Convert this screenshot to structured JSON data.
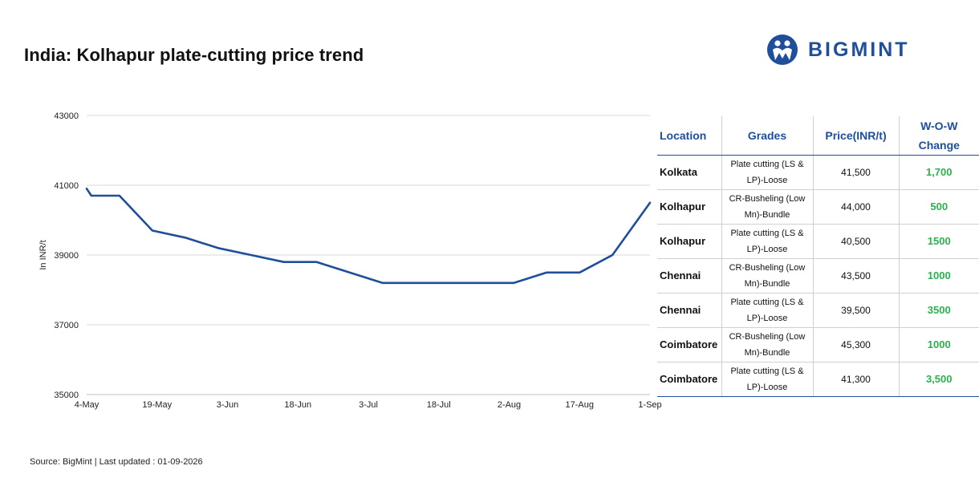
{
  "header": {
    "title": "India: Kolhapur plate-cutting price trend",
    "brand": "BIGMINT",
    "brand_color": "#1f4e9b"
  },
  "chart_data": {
    "type": "line",
    "title": "India: Kolhapur plate-cutting price trend",
    "ylabel": "In INR/t",
    "xlabel": "",
    "ylim": [
      35000,
      43000
    ],
    "yticks": [
      "35000",
      "37000",
      "39000",
      "41000",
      "43000"
    ],
    "xticks": [
      "4-May",
      "19-May",
      "3-Jun",
      "18-Jun",
      "3-Jul",
      "18-Jul",
      "2-Aug",
      "17-Aug",
      "1-Sep"
    ],
    "grid": true,
    "line_color": "#1f4e9b",
    "series": [
      {
        "x": [
          "4-May",
          "5-May",
          "11-May",
          "18-May",
          "25-May",
          "1-Jun",
          "8-Jun",
          "15-Jun",
          "22-Jun",
          "29-Jun",
          "6-Jul",
          "13-Jul",
          "20-Jul",
          "27-Jul",
          "3-Aug",
          "10-Aug",
          "17-Aug",
          "24-Aug",
          "1-Sep"
        ],
        "values": [
          40900,
          40700,
          40700,
          39700,
          39500,
          39200,
          39000,
          38800,
          38800,
          38500,
          38200,
          38200,
          38200,
          38200,
          38200,
          38500,
          38500,
          39000,
          40500
        ]
      }
    ]
  },
  "table": {
    "headers": [
      "Location",
      "Grades",
      "Price(INR/t)",
      "W-O-W Change"
    ],
    "rows": [
      {
        "location": "Kolkata",
        "grade": "Plate cutting (LS & LP)-Loose",
        "price": "41,500",
        "wow": "1,700"
      },
      {
        "location": "Kolhapur",
        "grade": "CR-Busheling (Low Mn)-Bundle",
        "price": "44,000",
        "wow": "500"
      },
      {
        "location": "Kolhapur",
        "grade": "Plate cutting (LS & LP)-Loose",
        "price": "40,500",
        "wow": "1500"
      },
      {
        "location": "Chennai",
        "grade": "CR-Busheling (Low Mn)-Bundle",
        "price": "43,500",
        "wow": "1000"
      },
      {
        "location": "Chennai",
        "grade": "Plate cutting (LS & LP)-Loose",
        "price": "39,500",
        "wow": "3500"
      },
      {
        "location": "Coimbatore",
        "grade": "CR-Busheling (Low Mn)-Bundle",
        "price": "45,300",
        "wow": "1000"
      },
      {
        "location": "Coimbatore",
        "grade": "Plate cutting (LS & LP)-Loose",
        "price": "41,300",
        "wow": "3,500"
      }
    ],
    "wow_color": "#2bb24c"
  },
  "footer": {
    "source": "Source: BigMint | Last updated : 01-09-2026"
  }
}
